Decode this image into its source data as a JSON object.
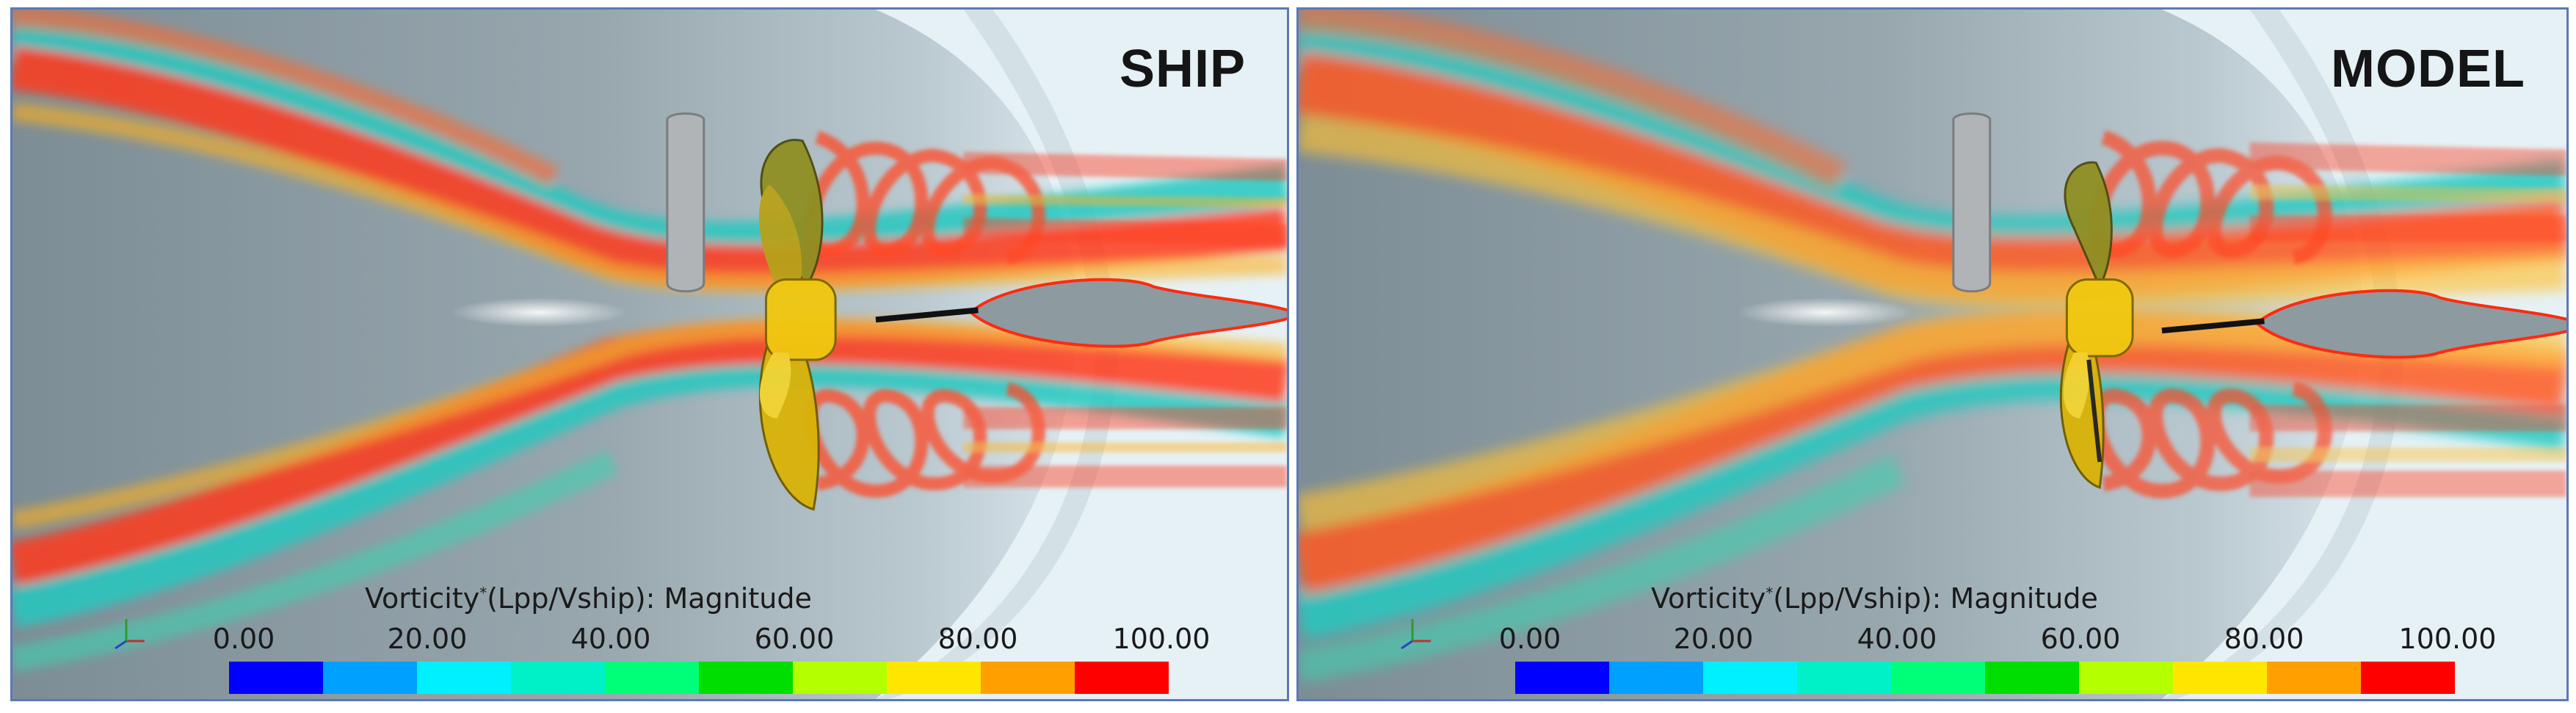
{
  "panels": [
    {
      "id": "ship",
      "title": "SHIP",
      "colorbar": {
        "title_main": "Vorticity",
        "title_sup": "*",
        "title_rest": "(Lpp/Vship): Magnitude",
        "ticks": [
          "0.00",
          "20.00",
          "40.00",
          "60.00",
          "80.00",
          "100.00"
        ]
      }
    },
    {
      "id": "model",
      "title": "MODEL",
      "colorbar": {
        "title_main": "Vorticity",
        "title_sup": "*",
        "title_rest": "(Lpp/Vship): Magnitude",
        "ticks": [
          "0.00",
          "20.00",
          "40.00",
          "60.00",
          "80.00",
          "100.00"
        ]
      }
    }
  ],
  "colormap": [
    "#0000ff",
    "#00a0ff",
    "#00f0ff",
    "#00f0c8",
    "#00ff78",
    "#00dd00",
    "#b4ff00",
    "#ffe600",
    "#ffa000",
    "#ff0000"
  ],
  "colors": {
    "hull": "#8f9ea5",
    "hull_light": "#b9c6cc",
    "background": "#eaf3f7",
    "propeller": "#e6c20a",
    "propeller_dark": "#6b6a12",
    "rudder": "#9aa0a3",
    "border": "#5b79b8"
  }
}
